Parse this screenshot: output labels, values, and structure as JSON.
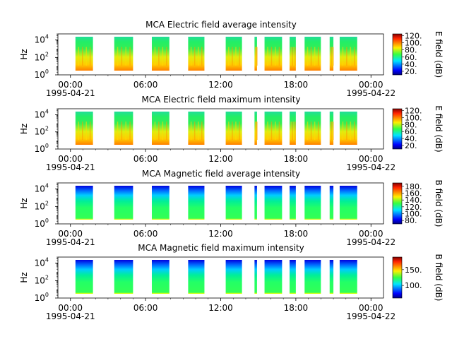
{
  "figure": {
    "x_ticks": [
      "00:00",
      "06:00",
      "12:00",
      "18:00",
      "00:00"
    ],
    "x_tick_dates": [
      "1995-04-21",
      "",
      "",
      "",
      "1995-04-22"
    ],
    "x_range_hours": [
      -1,
      25
    ]
  },
  "chart_data": [
    {
      "type": "heatmap",
      "title": "MCA  Electric field average intensity",
      "ylabel": "Hz",
      "y_scale": "log",
      "y_ticks": [
        "10",
        "10",
        "10"
      ],
      "y_tick_exponents": [
        "0",
        "2",
        "4"
      ],
      "colorbar_label": "E field (dB)",
      "colorbar_ticks": [
        "20.",
        "40.",
        "60.",
        "80.",
        "100.",
        "120."
      ],
      "colorbar_range": [
        10,
        125
      ],
      "colormap": "jet",
      "data_segments_hours": [
        [
          0.4,
          1.8
        ],
        [
          3.5,
          5.0
        ],
        [
          6.5,
          7.9
        ],
        [
          9.4,
          10.7
        ],
        [
          12.4,
          13.7
        ],
        [
          14.7,
          14.9
        ],
        [
          15.5,
          16.9
        ],
        [
          17.5,
          18.0
        ],
        [
          18.7,
          20.0
        ],
        [
          20.7,
          21.0
        ],
        [
          21.5,
          22.9
        ]
      ]
    },
    {
      "type": "heatmap",
      "title": "MCA  Electric field maximum intensity",
      "ylabel": "Hz",
      "y_scale": "log",
      "y_ticks": [
        "10",
        "10",
        "10"
      ],
      "y_tick_exponents": [
        "0",
        "2",
        "4"
      ],
      "colorbar_label": "E field (dB)",
      "colorbar_ticks": [
        "20.",
        "40.",
        "60.",
        "80.",
        "100.",
        "120."
      ],
      "colorbar_range": [
        10,
        125
      ],
      "colormap": "jet",
      "data_segments_hours": [
        [
          0.4,
          1.8
        ],
        [
          3.5,
          5.0
        ],
        [
          6.5,
          7.9
        ],
        [
          9.4,
          10.7
        ],
        [
          12.4,
          13.7
        ],
        [
          14.7,
          14.9
        ],
        [
          15.5,
          16.9
        ],
        [
          17.5,
          18.0
        ],
        [
          18.7,
          20.0
        ],
        [
          20.7,
          21.0
        ],
        [
          21.5,
          22.9
        ]
      ]
    },
    {
      "type": "heatmap",
      "title": "MCA  Magnetic field average intensity",
      "ylabel": "Hz",
      "y_scale": "log",
      "y_ticks": [
        "10",
        "10",
        "10"
      ],
      "y_tick_exponents": [
        "0",
        "2",
        "4"
      ],
      "colorbar_label": "B field (dB)",
      "colorbar_ticks": [
        "80.",
        "100.",
        "120.",
        "140.",
        "160.",
        "180."
      ],
      "colorbar_range": [
        70,
        190
      ],
      "colormap": "jet",
      "data_segments_hours": [
        [
          0.4,
          1.8
        ],
        [
          3.5,
          5.0
        ],
        [
          6.5,
          7.9
        ],
        [
          9.4,
          10.7
        ],
        [
          12.4,
          13.7
        ],
        [
          14.7,
          14.9
        ],
        [
          15.5,
          16.9
        ],
        [
          17.5,
          18.0
        ],
        [
          18.7,
          20.0
        ],
        [
          20.7,
          21.0
        ],
        [
          21.5,
          22.9
        ]
      ]
    },
    {
      "type": "heatmap",
      "title": "MCA  Magnetic field maximum intensity",
      "ylabel": "Hz",
      "y_scale": "log",
      "y_ticks": [
        "10",
        "10",
        "10"
      ],
      "y_tick_exponents": [
        "0",
        "2",
        "4"
      ],
      "colorbar_label": "B field (dB)",
      "colorbar_ticks": [
        "100.",
        "150."
      ],
      "colorbar_range": [
        60,
        190
      ],
      "colormap": "jet",
      "data_segments_hours": [
        [
          0.4,
          1.8
        ],
        [
          3.5,
          5.0
        ],
        [
          6.5,
          7.9
        ],
        [
          9.4,
          10.7
        ],
        [
          12.4,
          13.7
        ],
        [
          14.7,
          14.9
        ],
        [
          15.5,
          16.9
        ],
        [
          17.5,
          18.0
        ],
        [
          18.7,
          20.0
        ],
        [
          20.7,
          21.0
        ],
        [
          21.5,
          22.9
        ]
      ]
    }
  ]
}
